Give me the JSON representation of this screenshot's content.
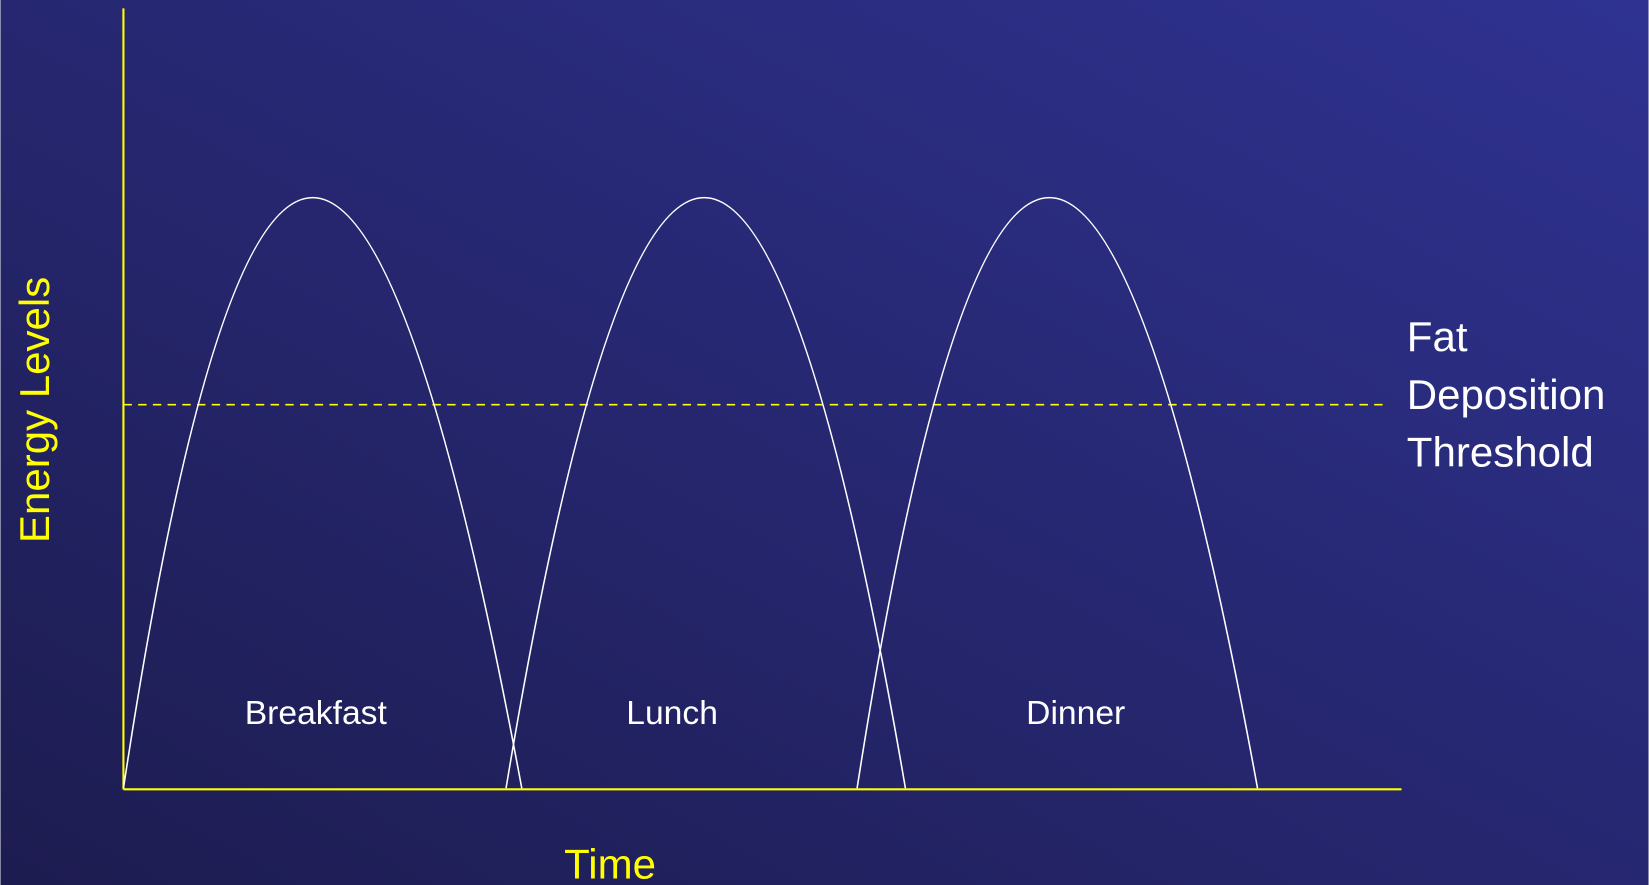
{
  "y_axis_label": "Energy Levels",
  "x_axis_label": "Time",
  "meals": [
    {
      "label": "Breakfast"
    },
    {
      "label": "Lunch"
    },
    {
      "label": "Dinner"
    }
  ],
  "threshold": {
    "label_lines": [
      "Fat",
      "Deposition",
      "Threshold"
    ]
  }
}
